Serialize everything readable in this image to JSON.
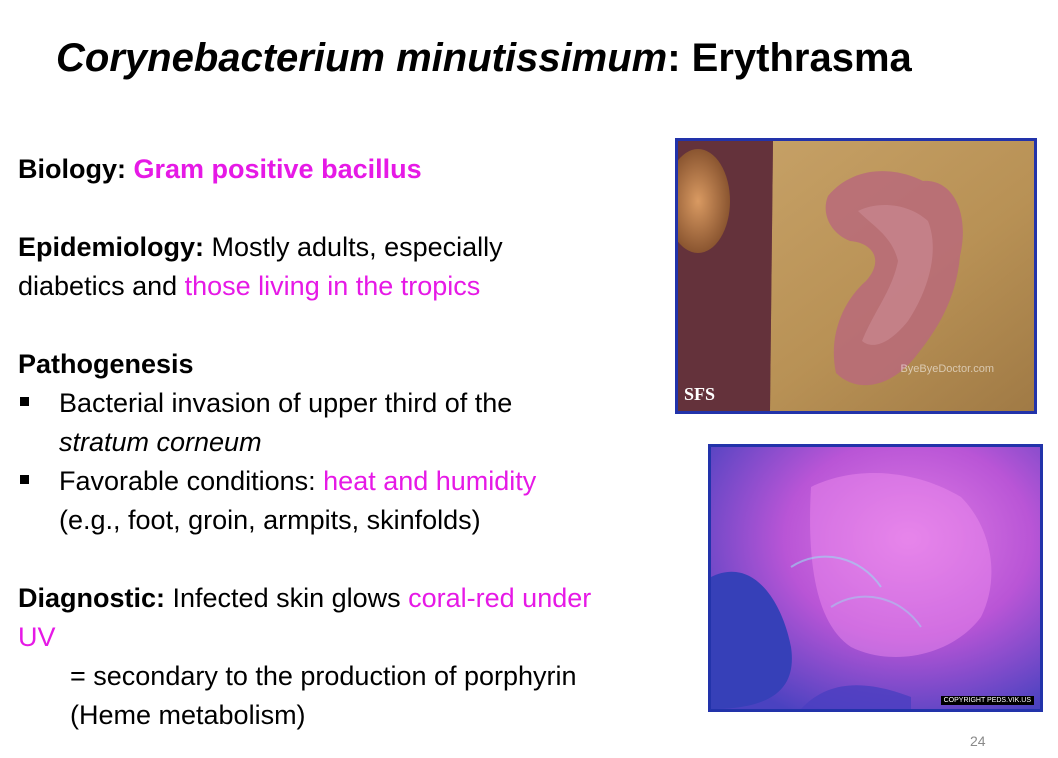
{
  "title": {
    "organism": "Corynebacterium minutissimum",
    "rest": ": Erythrasma"
  },
  "biology": {
    "label": "Biology:",
    "value": "Gram positive bacillus"
  },
  "epidemiology": {
    "label": "Epidemiology:",
    "line1": " Mostly adults, especially",
    "line2_plain": "diabetics and ",
    "line2_highlight": "those living in the tropics"
  },
  "pathogenesis": {
    "label": "Pathogenesis",
    "bullet1_line1": "Bacterial invasion of  upper third of the",
    "bullet1_line2": "stratum corneum",
    "bullet2_plain": "Favorable conditions: ",
    "bullet2_highlight": "heat and humidity",
    "bullet2_line2": "(e.g., foot, groin, armpits, skinfolds)"
  },
  "diagnostic": {
    "label": "Diagnostic:",
    "plain": " Infected skin glows ",
    "highlight1": "coral-red under",
    "highlight2": "UV",
    "note1": "= secondary to the production of porphyrin",
    "note2": "(Heme metabolism)"
  },
  "images": {
    "photo1_label": "SFS",
    "photo1_watermark": "ByeByeDoctor.com",
    "photo2_watermark": "COPYRIGHT PEDS.VIK.US"
  },
  "page_number": "24",
  "colors": {
    "highlight": "#e619e6",
    "image_border": "#2233aa"
  }
}
